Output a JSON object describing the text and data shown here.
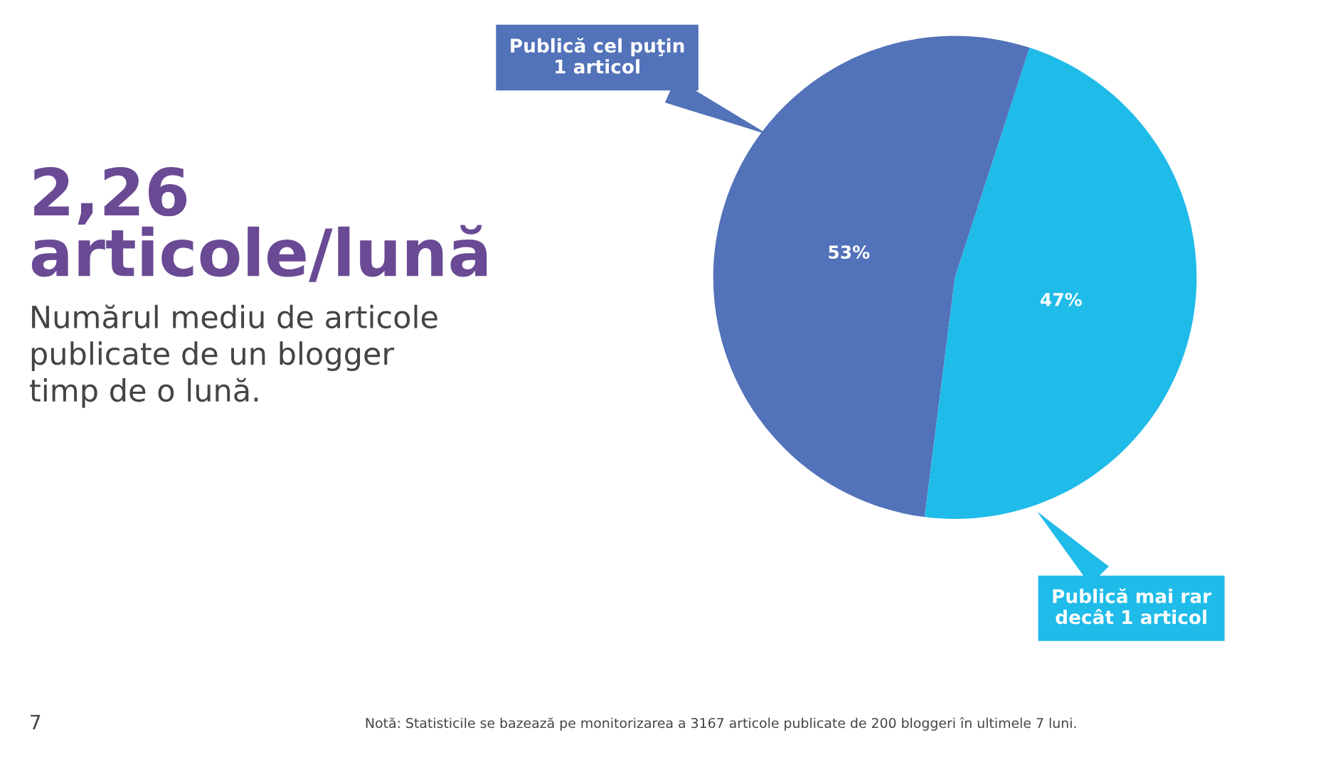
{
  "chart_data": {
    "type": "pie",
    "title": "2,26 articole/lună",
    "subtitle": "Numărul mediu de articole\npublicate de un blogger\ntimp de o lună.",
    "categories": [
      "Publică cel puţin\n1 articol",
      "Publică mai rar\ndecât 1 articol"
    ],
    "values": [
      53,
      47
    ],
    "colors": [
      "#5272b9",
      "#1fbbe9"
    ],
    "value_labels": [
      "53%",
      "47%"
    ],
    "annotations": [
      "7",
      "Notă: Statisticile se bazează pe monitorizarea a 3167 articole publicate de 200 bloggeri în ultimele 7 luni."
    ],
    "legend": false
  }
}
